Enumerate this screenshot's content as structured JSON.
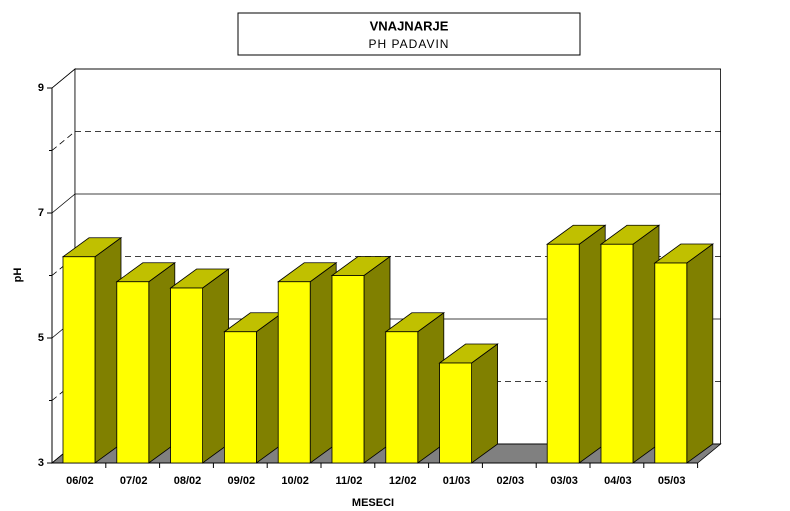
{
  "chart_data": {
    "type": "bar3d",
    "title": "VNAJNARJE",
    "subtitle": "PH PADAVIN",
    "x_label": "MESECI",
    "y_label": "pH",
    "categories": [
      "06/02",
      "07/02",
      "08/02",
      "09/02",
      "10/02",
      "11/02",
      "12/02",
      "01/03",
      "02/03",
      "03/03",
      "04/03",
      "05/03"
    ],
    "values": [
      6.3,
      5.9,
      5.8,
      5.1,
      5.9,
      6.0,
      5.1,
      4.6,
      null,
      6.5,
      6.5,
      6.2
    ],
    "color": "#ffff00",
    "ylim": [
      3,
      9
    ],
    "yticks": [
      3,
      5,
      7,
      9
    ],
    "minor_yticks": [
      4,
      6,
      8
    ],
    "grid": true
  }
}
